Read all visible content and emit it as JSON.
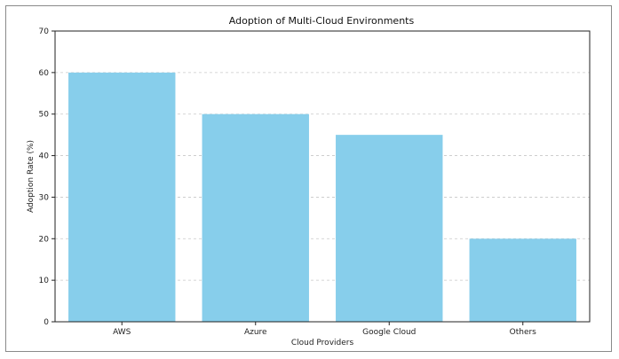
{
  "chart_data": {
    "type": "bar",
    "title": "Adoption of Multi-Cloud Environments",
    "xlabel": "Cloud Providers",
    "ylabel": "Adoption Rate (%)",
    "categories": [
      "AWS",
      "Azure",
      "Google Cloud",
      "Others"
    ],
    "values": [
      60,
      50,
      45,
      20
    ],
    "ylim": [
      0,
      70
    ],
    "yticks": [
      0,
      10,
      20,
      30,
      40,
      50,
      60,
      70
    ],
    "grid": "y-dashed",
    "bar_color": "#87CEEB"
  }
}
